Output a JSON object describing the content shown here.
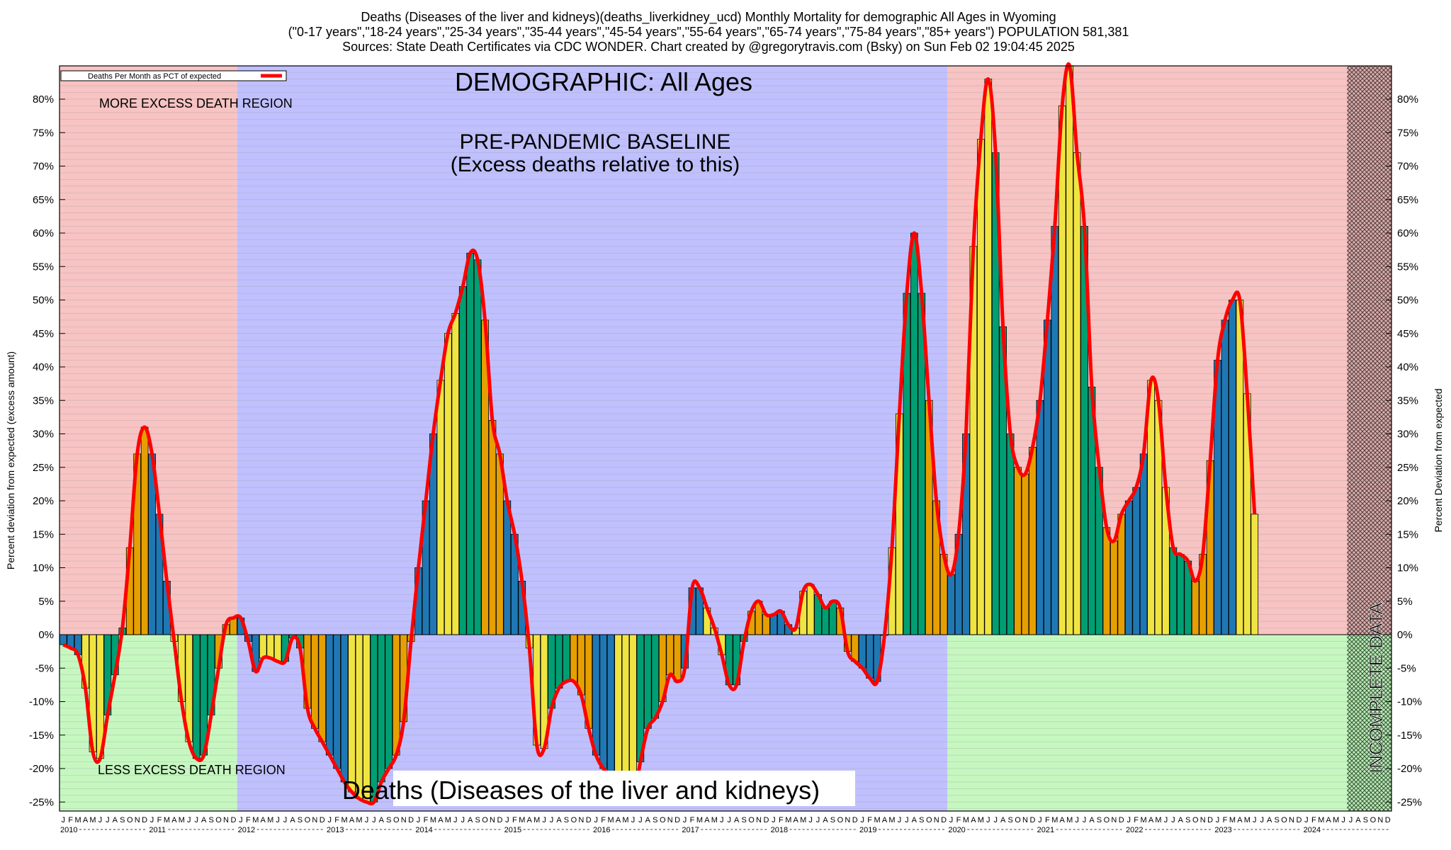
{
  "header": {
    "line1": "Deaths (Diseases of the liver and kidneys)(deaths_liverkidney_ucd) Monthly Mortality for demographic All Ages in Wyoming",
    "line2": "(\"0-17 years\",\"18-24 years\",\"25-34 years\",\"35-44 years\",\"45-54 years\",\"55-64 years\",\"65-74 years\",\"75-84 years\",\"85+ years\") POPULATION 581,381",
    "line3": "Sources: State Death Certificates via CDC WONDER.              Chart created by @gregorytravis.com (Bsky) on Sun Feb 02 19:04:45 2025"
  },
  "annotations": {
    "demographic": "DEMOGRAPHIC: All Ages",
    "baseline_title": "PRE-PANDEMIC BASELINE",
    "baseline_sub": "(Excess deaths relative to this)",
    "more_region": "MORE EXCESS DEATH REGION",
    "less_region": "LESS EXCESS DEATH REGION",
    "incomplete": "INCOMPLETE DATA",
    "cause_label": "Deaths (Diseases of the liver and kidneys)"
  },
  "legend": {
    "label": "Deaths Per Month as PCT of expected",
    "line_color": "#ff0000"
  },
  "colors": {
    "more_region": "#f7c3c3",
    "less_region": "#c6f7c0",
    "baseline_region": "#c0c0ff",
    "incomplete_region": "#9a7070",
    "bar_palette": [
      "#1f78b4",
      "#f0e442",
      "#009e73",
      "#e69f00"
    ],
    "line": "#ff0000"
  },
  "chart_data": {
    "type": "bar",
    "ylabel_left": "Percent deviation from expected (excess amount)",
    "ylabel_right": "Percent Deviation from expected",
    "ylim": [
      -26,
      85
    ],
    "yticks": [
      -25,
      -20,
      -15,
      -10,
      -5,
      0,
      5,
      10,
      15,
      20,
      25,
      30,
      35,
      40,
      45,
      50,
      55,
      60,
      65,
      70,
      75,
      80
    ],
    "ytick_labels": [
      "-25%",
      "-20%",
      "-15%",
      "-10%",
      "-5%",
      "0%",
      "5%",
      "10%",
      "15%",
      "20%",
      "25%",
      "30%",
      "35%",
      "40%",
      "45%",
      "50%",
      "55%",
      "60%",
      "65%",
      "70%",
      "75%",
      "80%"
    ],
    "month_letters": [
      "J",
      "F",
      "M",
      "A",
      "M",
      "J",
      "J",
      "A",
      "S",
      "O",
      "N",
      "D"
    ],
    "years": [
      "2010",
      "2011",
      "2012",
      "2013",
      "2014",
      "2015",
      "2016",
      "2017",
      "2018",
      "2019",
      "2020",
      "2021",
      "2022",
      "2023",
      "2024"
    ],
    "start": "2010-01",
    "regions": [
      {
        "name": "more-less-2010-2011",
        "from": "2010-01",
        "to": "2011-12"
      },
      {
        "name": "pre-pandemic-baseline",
        "from": "2012-01",
        "to": "2019-12"
      },
      {
        "name": "more-less-2020-2024",
        "from": "2020-01",
        "to": "2024-06"
      },
      {
        "name": "incomplete-data",
        "from": "2024-07",
        "to": "2024-12"
      }
    ],
    "values": [
      -1.5,
      -2,
      -3,
      -8,
      -17.5,
      -18.5,
      -12,
      -6,
      1,
      13,
      27,
      31,
      27,
      18,
      8,
      -1,
      -10,
      -16,
      -18.5,
      -18,
      -12,
      -5,
      1.5,
      2.5,
      2.5,
      -1,
      -5.5,
      -3.5,
      -3.5,
      -4,
      -4,
      -0.5,
      -2,
      -11,
      -14,
      -16,
      -18,
      -20,
      -22,
      -23.5,
      -24.5,
      -25,
      -25,
      -22,
      -20,
      -18,
      -13,
      -1,
      10,
      20,
      30,
      38,
      45,
      48,
      52,
      57,
      56,
      47,
      32,
      27,
      20,
      15,
      8,
      -2,
      -16.5,
      -17,
      -11,
      -8,
      -7,
      -7,
      -9,
      -14,
      -18,
      -20,
      -21,
      -21.5,
      -24,
      -25,
      -19,
      -14,
      -12.5,
      -10,
      -6,
      -7,
      -5,
      7,
      7,
      4,
      1,
      -3,
      -7.5,
      -7.5,
      -1,
      3.5,
      5,
      3,
      3,
      3.5,
      1.5,
      1,
      6.5,
      7.5,
      6,
      4,
      5,
      4,
      -2.5,
      -4,
      -5,
      -6.5,
      -7,
      0,
      13,
      33,
      51,
      60,
      51,
      35,
      20,
      12,
      9,
      15,
      30,
      58,
      74,
      83,
      72,
      46,
      30,
      25,
      24,
      28,
      35,
      47,
      61,
      79,
      85,
      72,
      61,
      37,
      25,
      16,
      14,
      18,
      20,
      22,
      27,
      38,
      35,
      22,
      13,
      12,
      11,
      8,
      12,
      26,
      41,
      47,
      50,
      50,
      36,
      18
    ],
    "ytick_max_gridline": 84
  }
}
